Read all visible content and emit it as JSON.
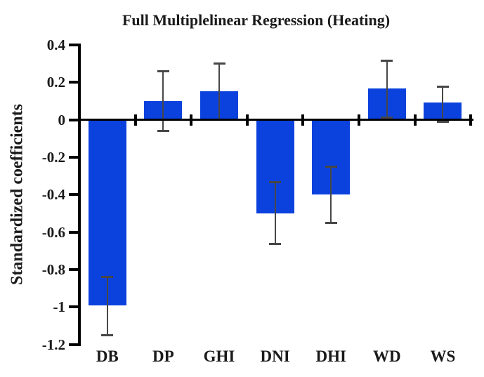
{
  "chart_data": {
    "type": "bar",
    "title": "Full Multiplelinear Regression (Heating)",
    "xlabel": "",
    "ylabel": "Standardized coefficients",
    "categories": [
      "DB",
      "DP",
      "GHI",
      "DNI",
      "DHI",
      "WD",
      "WS"
    ],
    "values": [
      -0.99,
      0.1,
      0.15,
      -0.5,
      -0.4,
      0.165,
      0.09
    ],
    "error_low": [
      -1.15,
      -0.06,
      0.0,
      -0.665,
      -0.55,
      0.01,
      -0.01
    ],
    "error_high": [
      -0.84,
      0.26,
      0.3,
      -0.335,
      -0.25,
      0.315,
      0.175
    ],
    "ylim": [
      -1.2,
      0.4
    ],
    "yticks": [
      0.4,
      0.2,
      0,
      -0.2,
      -0.4,
      -0.6,
      -0.8,
      -1,
      -1.2
    ],
    "ytick_labels": [
      "0.4",
      "0.2",
      "0",
      "-0.2",
      "-0.4",
      "-0.6",
      "-0.8",
      "-1",
      "-1.2"
    ],
    "grid": false,
    "legend": "none",
    "bar_color": "#0b41dd",
    "error_bar_color": "#474747",
    "axis_color": "#000000"
  }
}
